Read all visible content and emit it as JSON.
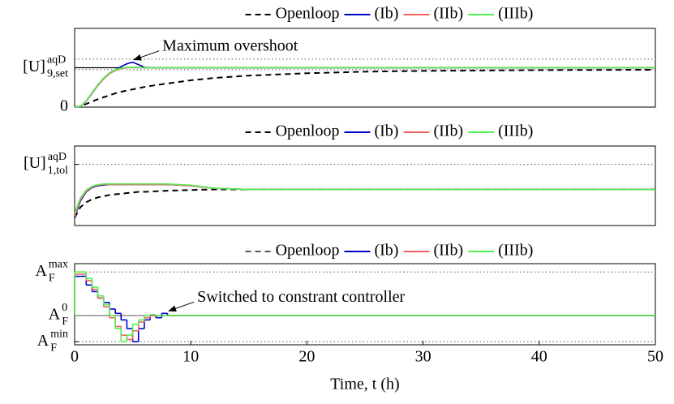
{
  "chart_data": [
    {
      "type": "line",
      "legend": "top",
      "xlim": [
        0,
        50
      ],
      "ylim": [
        0,
        2
      ],
      "yticks": [
        0,
        {
          "value": 1,
          "label": "[U]",
          "sup": "aqD",
          "sub": "9,set"
        }
      ],
      "hlines": [
        {
          "value": 1,
          "style": "solid"
        },
        {
          "value": 1.22,
          "style": "dotted"
        },
        {
          "value": 0.95,
          "style": "dotted"
        }
      ],
      "annotation": {
        "text": "Maximum overshoot",
        "x": 4.9,
        "y": 1.14
      },
      "x": [
        0,
        0.5,
        1,
        1.5,
        2,
        2.5,
        3,
        3.5,
        4,
        4.5,
        5,
        5.5,
        6,
        7,
        8,
        10,
        12,
        15,
        20,
        25,
        30,
        40,
        50
      ],
      "series": [
        {
          "name": "Openloop",
          "color": "#000000",
          "dash": true,
          "values": [
            0,
            0.02,
            0.08,
            0.14,
            0.2,
            0.25,
            0.3,
            0.35,
            0.39,
            0.42,
            0.45,
            0.48,
            0.51,
            0.56,
            0.6,
            0.68,
            0.74,
            0.8,
            0.86,
            0.9,
            0.92,
            0.94,
            0.95
          ]
        },
        {
          "name": "(Ib)",
          "color": "#0000cc",
          "values": [
            0,
            0.02,
            0.15,
            0.35,
            0.55,
            0.72,
            0.85,
            0.95,
            1.03,
            1.1,
            1.14,
            1.08,
            1.01,
            1,
            1,
            1,
            1,
            1,
            1,
            1,
            1,
            1,
            1
          ]
        },
        {
          "name": "(IIb)",
          "color": "#f06060",
          "values": [
            0,
            0.02,
            0.15,
            0.35,
            0.55,
            0.72,
            0.85,
            0.93,
            0.98,
            1,
            1.01,
            1.01,
            1,
            1,
            1,
            1,
            1,
            1,
            1,
            1,
            1,
            1,
            1
          ]
        },
        {
          "name": "(IIIb)",
          "color": "#50f050",
          "values": [
            0,
            0.02,
            0.16,
            0.37,
            0.57,
            0.74,
            0.87,
            0.95,
            0.99,
            1.01,
            1.01,
            1.01,
            1,
            1,
            1,
            1,
            1,
            1,
            1,
            1,
            1,
            1,
            1
          ]
        }
      ]
    },
    {
      "type": "line",
      "legend": "top",
      "xlim": [
        0,
        50
      ],
      "ylim": [
        0,
        1.3
      ],
      "yticks": [
        {
          "value": 1,
          "label": "[U]",
          "sup": "aqD",
          "sub": "1,tol"
        }
      ],
      "hlines": [
        {
          "value": 1,
          "style": "dotted"
        }
      ],
      "x": [
        0,
        0.5,
        1,
        1.5,
        2,
        2.5,
        3,
        3.5,
        4,
        4.5,
        5,
        5.5,
        6,
        7,
        8,
        10,
        12,
        15,
        20,
        25,
        30,
        40,
        50
      ],
      "series": [
        {
          "name": "Openloop",
          "color": "#000000",
          "dash": true,
          "values": [
            0.13,
            0.3,
            0.38,
            0.43,
            0.46,
            0.48,
            0.5,
            0.51,
            0.52,
            0.53,
            0.54,
            0.55,
            0.55,
            0.56,
            0.57,
            0.58,
            0.59,
            0.59,
            0.59,
            0.59,
            0.59,
            0.59,
            0.59
          ]
        },
        {
          "name": "(Ib)",
          "color": "#0000cc",
          "values": [
            0.13,
            0.4,
            0.55,
            0.62,
            0.65,
            0.66,
            0.67,
            0.67,
            0.67,
            0.67,
            0.67,
            0.67,
            0.67,
            0.67,
            0.67,
            0.65,
            0.61,
            0.59,
            0.59,
            0.59,
            0.59,
            0.59,
            0.59
          ]
        },
        {
          "name": "(IIb)",
          "color": "#f06060",
          "values": [
            0.15,
            0.42,
            0.56,
            0.63,
            0.66,
            0.67,
            0.67,
            0.67,
            0.67,
            0.67,
            0.67,
            0.67,
            0.67,
            0.67,
            0.67,
            0.65,
            0.61,
            0.59,
            0.59,
            0.59,
            0.59,
            0.59,
            0.59
          ]
        },
        {
          "name": "(IIIb)",
          "color": "#50f050",
          "values": [
            0.2,
            0.45,
            0.58,
            0.64,
            0.67,
            0.68,
            0.68,
            0.68,
            0.68,
            0.68,
            0.68,
            0.68,
            0.68,
            0.68,
            0.68,
            0.66,
            0.61,
            0.59,
            0.59,
            0.59,
            0.59,
            0.59,
            0.59
          ]
        }
      ]
    },
    {
      "type": "step",
      "legend": "top",
      "xlim": [
        0,
        50
      ],
      "ylim": [
        -0.67,
        1.19
      ],
      "xticks": [
        0,
        10,
        20,
        30,
        40,
        50
      ],
      "xlabel": "Time, t (h)",
      "yticks": [
        {
          "value": 1,
          "label": "A",
          "sup": "max",
          "sub": "F"
        },
        {
          "value": 0,
          "label": "A",
          "sup": "0",
          "sub": "F"
        },
        {
          "value": -0.6,
          "label": "A",
          "sup": "min",
          "sub": "F"
        }
      ],
      "hlines": [
        {
          "value": 1,
          "style": "dotted"
        },
        {
          "value": -0.6,
          "style": "dotted"
        }
      ],
      "annotation": {
        "text": "Switched to constrant controller",
        "x": 7.9,
        "y": 0.05
      },
      "x": [
        0,
        0.5,
        1,
        1.5,
        2,
        2.5,
        3,
        3.5,
        4,
        4.5,
        5,
        5.5,
        6,
        6.5,
        7,
        7.5,
        8,
        50
      ],
      "series": [
        {
          "name": "Openloop",
          "color": "#555555",
          "dash": true,
          "values": [
            0,
            0,
            0,
            0,
            0,
            0,
            0,
            0,
            0,
            0,
            0,
            0,
            0,
            0,
            0,
            0,
            0,
            0
          ]
        },
        {
          "name": "(Ib)",
          "color": "#0000cc",
          "values": [
            0.9,
            0.9,
            0.7,
            0.55,
            0.4,
            0.3,
            0.15,
            0.05,
            -0.1,
            -0.3,
            -0.6,
            -0.3,
            -0.1,
            0,
            -0.05,
            0.05,
            0,
            0
          ]
        },
        {
          "name": "(IIb)",
          "color": "#f06060",
          "values": [
            0.95,
            0.95,
            0.8,
            0.6,
            0.4,
            0.2,
            -0.05,
            -0.25,
            -0.45,
            -0.55,
            -0.35,
            -0.15,
            -0.05,
            0,
            0,
            0,
            0,
            0
          ]
        },
        {
          "name": "(IIIb)",
          "color": "#50f050",
          "values": [
            1,
            1,
            0.85,
            0.65,
            0.45,
            0.25,
            0,
            -0.3,
            -0.6,
            -0.45,
            -0.2,
            -0.1,
            0,
            0.02,
            0,
            0,
            0,
            0
          ]
        }
      ]
    }
  ]
}
